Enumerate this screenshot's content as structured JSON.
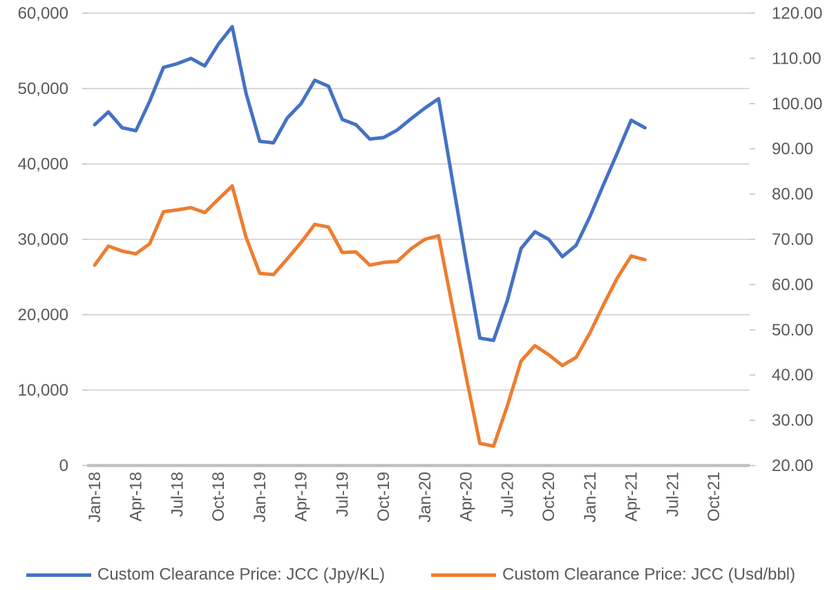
{
  "colors": {
    "series_jpy": "#4472C4",
    "series_usd": "#ED7D31",
    "gridline": "#D9D9D9",
    "axis_line": "#BFBFBF",
    "axis_text": "#595959",
    "background": "#FFFFFF"
  },
  "chart_data": {
    "type": "line",
    "title": "",
    "grid": true,
    "legend_position": "bottom",
    "x": [
      "Jan-18",
      "Feb-18",
      "Mar-18",
      "Apr-18",
      "May-18",
      "Jun-18",
      "Jul-18",
      "Aug-18",
      "Sep-18",
      "Oct-18",
      "Nov-18",
      "Dec-18",
      "Jan-19",
      "Feb-19",
      "Mar-19",
      "Apr-19",
      "May-19",
      "Jun-19",
      "Jul-19",
      "Aug-19",
      "Sep-19",
      "Oct-19",
      "Nov-19",
      "Dec-19",
      "Jan-20",
      "Feb-20",
      "Mar-20",
      "Apr-20",
      "May-20",
      "Jun-20",
      "Jul-20",
      "Aug-20",
      "Sep-20",
      "Oct-20",
      "Nov-20",
      "Dec-20",
      "Jan-21",
      "Feb-21",
      "Mar-21",
      "Apr-21",
      "May-21"
    ],
    "x_axis_tick_labels": [
      "Jan-18",
      "Apr-18",
      "Jul-18",
      "Oct-18",
      "Jan-19",
      "Apr-19",
      "Jul-19",
      "Oct-19",
      "Jan-20",
      "Apr-20",
      "Jul-20",
      "Oct-20",
      "Jan-21",
      "Apr-21",
      "Jul-21",
      "Oct-21"
    ],
    "left_axis": {
      "min": 0,
      "max": 60000,
      "step": 10000,
      "tick_labels": [
        "0",
        "10,000",
        "20,000",
        "30,000",
        "40,000",
        "50,000",
        "60,000"
      ]
    },
    "right_axis": {
      "min": 20,
      "max": 120,
      "step": 10,
      "tick_labels": [
        "20.00",
        "30.00",
        "40.00",
        "50.00",
        "60.00",
        "70.00",
        "80.00",
        "90.00",
        "100.00",
        "110.00",
        "120.00"
      ]
    },
    "series": [
      {
        "name": "Custom Clearance Price: JCC (Jpy/KL)",
        "axis": "left",
        "color": "#4472C4",
        "values": [
          45200,
          46900,
          44800,
          44400,
          48300,
          52800,
          53300,
          54000,
          53000,
          55900,
          58200,
          49400,
          43000,
          42800,
          46100,
          48000,
          51100,
          50300,
          45900,
          45200,
          43300,
          43500,
          44500,
          46000,
          47400,
          48650,
          37900,
          27200,
          16900,
          16600,
          21900,
          28800,
          31000,
          30000,
          27700,
          29200,
          33000,
          37300,
          41500,
          45800,
          44800
        ]
      },
      {
        "name": "Custom Clearance Price: JCC (Usd/bbl)",
        "axis": "right",
        "color": "#ED7D31",
        "values": [
          64.3,
          68.5,
          67.4,
          66.8,
          69.0,
          76.1,
          76.5,
          77.0,
          75.9,
          78.9,
          81.8,
          70.5,
          62.5,
          62.2,
          65.7,
          69.3,
          73.3,
          72.7,
          67.1,
          67.2,
          64.3,
          64.9,
          65.1,
          67.9,
          70.0,
          70.8,
          55.2,
          39.7,
          24.9,
          24.3,
          33.2,
          43.1,
          46.5,
          44.5,
          42.1,
          43.9,
          49.3,
          55.6,
          61.5,
          66.3,
          65.5
        ]
      }
    ]
  }
}
